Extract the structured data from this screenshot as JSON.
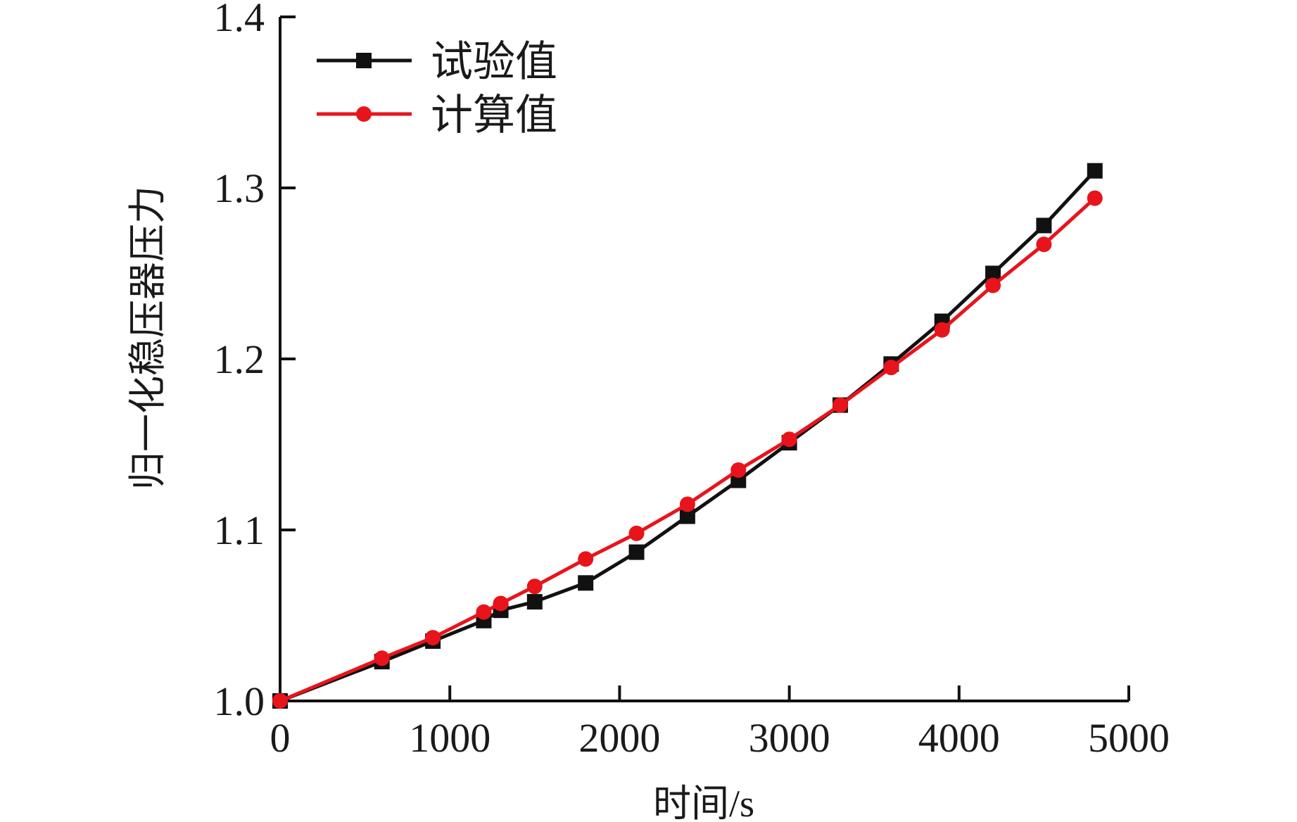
{
  "chart_data": {
    "type": "line",
    "title": "",
    "xlabel": "时间/s",
    "ylabel": "归一化稳压器压力",
    "xlim": [
      0,
      5000
    ],
    "ylim": [
      1.0,
      1.4
    ],
    "xticks": [
      "0",
      "1000",
      "2000",
      "3000",
      "4000",
      "5000"
    ],
    "yticks": [
      "1.0",
      "1.1",
      "1.2",
      "1.3",
      "1.4"
    ],
    "grid": false,
    "legend_position": "top-left",
    "series": [
      {
        "name": "试验值",
        "color": "#111111",
        "marker": "square",
        "x": [
          0,
          600,
          900,
          1200,
          1300,
          1500,
          1800,
          2100,
          2400,
          2700,
          3000,
          3300,
          3600,
          3900,
          4200,
          4500,
          4800
        ],
        "y": [
          1.0,
          1.023,
          1.035,
          1.047,
          1.053,
          1.058,
          1.069,
          1.087,
          1.108,
          1.129,
          1.151,
          1.173,
          1.197,
          1.222,
          1.25,
          1.278,
          1.31
        ]
      },
      {
        "name": "计算值",
        "color": "#e8141b",
        "marker": "circle",
        "x": [
          0,
          600,
          900,
          1200,
          1300,
          1500,
          1800,
          2100,
          2400,
          2700,
          3000,
          3300,
          3600,
          3900,
          4200,
          4500,
          4800
        ],
        "y": [
          1.0,
          1.025,
          1.037,
          1.052,
          1.057,
          1.067,
          1.083,
          1.098,
          1.115,
          1.135,
          1.153,
          1.173,
          1.195,
          1.217,
          1.243,
          1.267,
          1.294
        ]
      }
    ]
  }
}
